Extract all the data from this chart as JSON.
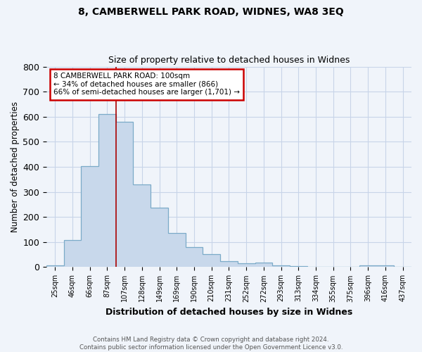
{
  "title": "8, CAMBERWELL PARK ROAD, WIDNES, WA8 3EQ",
  "subtitle": "Size of property relative to detached houses in Widnes",
  "xlabel": "Distribution of detached houses by size in Widnes",
  "ylabel": "Number of detached properties",
  "bin_labels": [
    "25sqm",
    "46sqm",
    "66sqm",
    "87sqm",
    "107sqm",
    "128sqm",
    "149sqm",
    "169sqm",
    "190sqm",
    "210sqm",
    "231sqm",
    "252sqm",
    "272sqm",
    "293sqm",
    "313sqm",
    "334sqm",
    "355sqm",
    "375sqm",
    "396sqm",
    "416sqm",
    "437sqm"
  ],
  "bar_values": [
    8,
    107,
    403,
    612,
    580,
    330,
    237,
    135,
    79,
    51,
    23,
    15,
    18,
    8,
    4,
    2,
    1,
    0,
    8,
    8,
    0
  ],
  "bar_color": "#c8d8eb",
  "bar_edge_color": "#7aaac8",
  "red_line_bin_index": 4,
  "annotation_line1": "8 CAMBERWELL PARK ROAD: 100sqm",
  "annotation_line2": "← 34% of detached houses are smaller (866)",
  "annotation_line3": "66% of semi-detached houses are larger (1,701) →",
  "annotation_box_color": "#ffffff",
  "annotation_box_edge_color": "#cc0000",
  "ylim": [
    0,
    800
  ],
  "yticks": [
    0,
    100,
    200,
    300,
    400,
    500,
    600,
    700,
    800
  ],
  "footer_line1": "Contains HM Land Registry data © Crown copyright and database right 2024.",
  "footer_line2": "Contains public sector information licensed under the Open Government Licence v3.0.",
  "background_color": "#f0f4fa",
  "grid_color": "#c8d4e8"
}
